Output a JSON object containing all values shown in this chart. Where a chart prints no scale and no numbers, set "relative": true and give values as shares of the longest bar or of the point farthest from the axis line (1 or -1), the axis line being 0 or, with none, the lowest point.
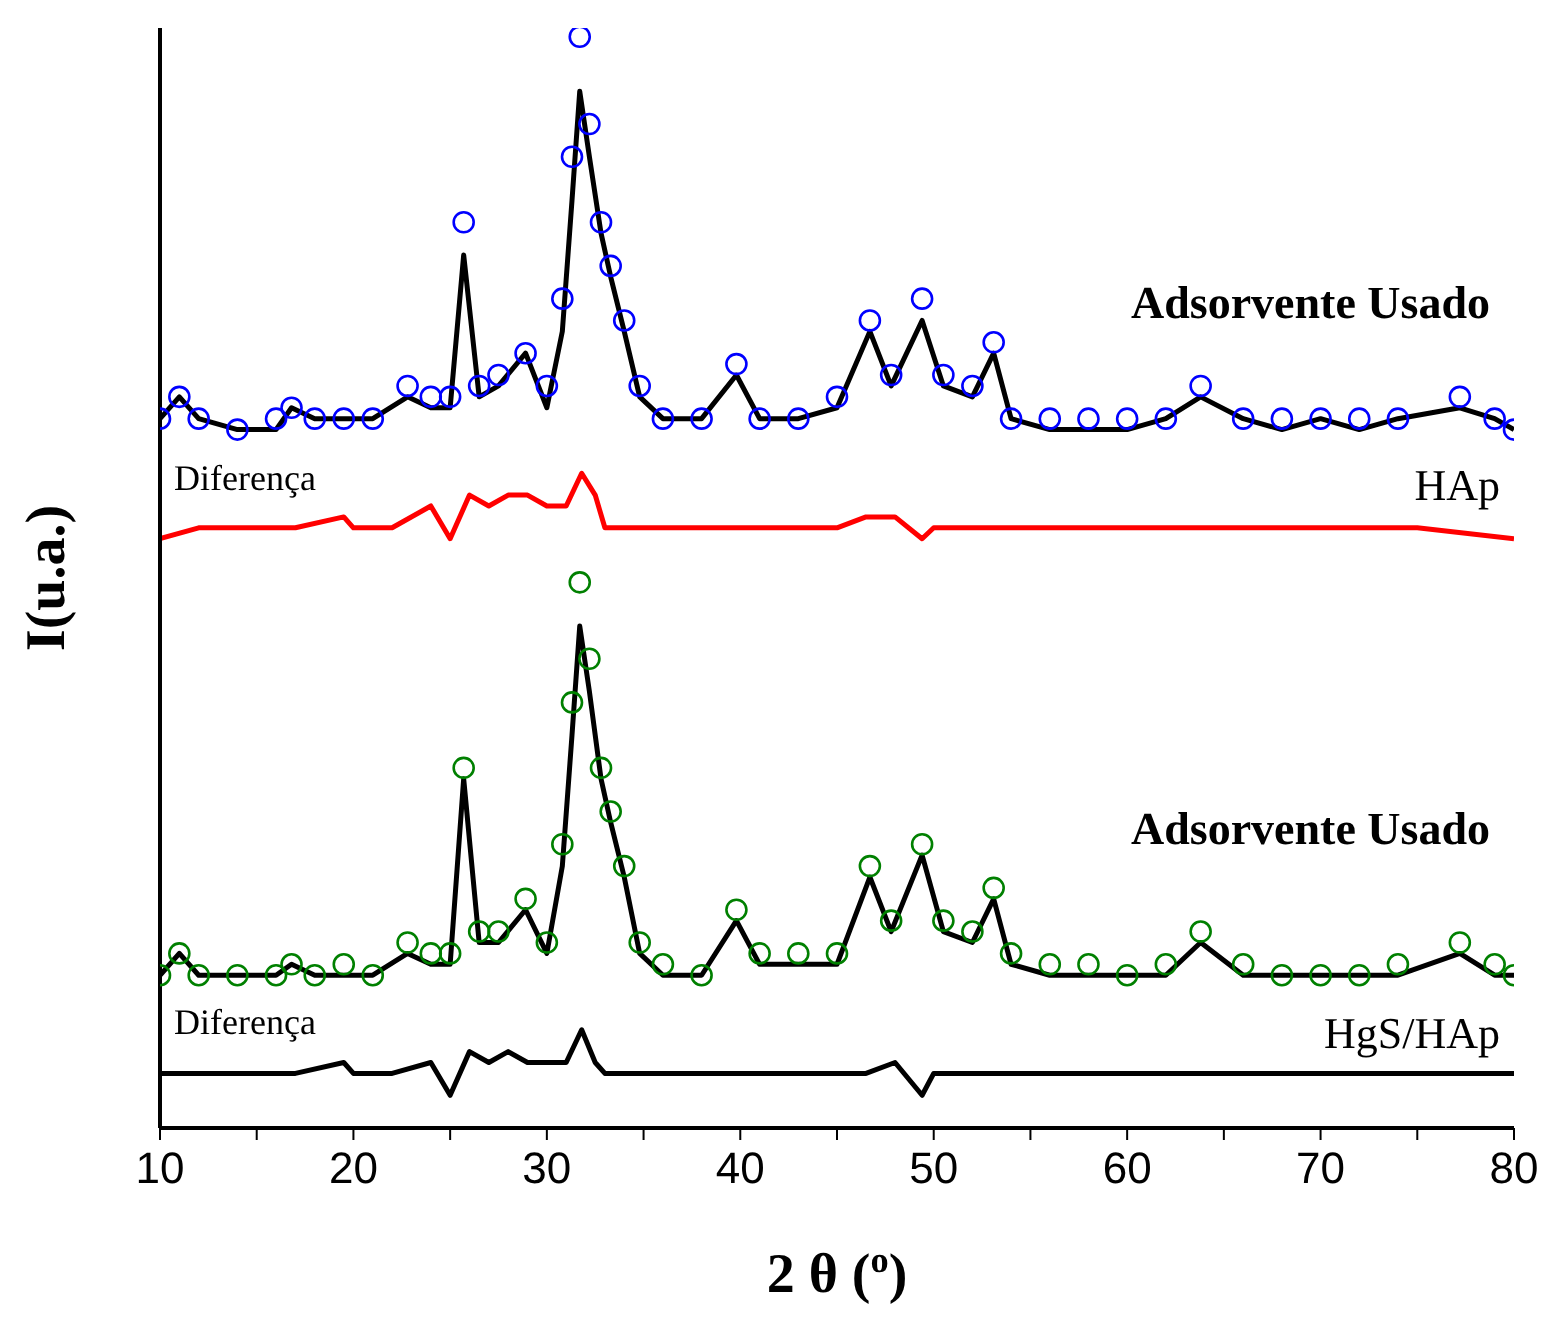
{
  "chart_data": {
    "type": "line",
    "relative": true,
    "xlabel": "2 θ ($^{o}$)",
    "ylabel": "I(u.a.)",
    "xlim": [
      10,
      80
    ],
    "xticks": [
      10,
      {
        "value": 15,
        "label": null
      },
      20,
      {
        "value": 25,
        "label": null
      },
      30,
      {
        "value": 35,
        "label": null
      },
      40,
      {
        "value": 45,
        "label": null
      },
      50,
      {
        "value": 55,
        "label": null
      },
      60,
      {
        "value": 65,
        "label": null
      },
      70,
      {
        "value": 75,
        "label": null
      },
      80
    ],
    "x": [
      10,
      11,
      12,
      14,
      16,
      16.8,
      18,
      19.5,
      21,
      22.8,
      24,
      25,
      25.7,
      26.5,
      27.5,
      28.9,
      30,
      30.8,
      31.3,
      31.7,
      32.2,
      32.8,
      33.3,
      34.0,
      34.8,
      36,
      38,
      39.8,
      41,
      43,
      45,
      46.7,
      47.8,
      49.4,
      50.5,
      52,
      53.1,
      54,
      56,
      58,
      60,
      62,
      63.8,
      66,
      68,
      70,
      72,
      74,
      77.2,
      79,
      80
    ],
    "series": [
      {
        "type": "scatter",
        "marker": "circle",
        "color": "#0000ff",
        "values": [
          0.65,
          0.67,
          0.65,
          0.64,
          0.65,
          0.66,
          0.65,
          0.65,
          0.65,
          0.68,
          0.67,
          0.67,
          0.83,
          0.68,
          0.69,
          0.71,
          0.68,
          0.76,
          0.89,
          1.0,
          0.92,
          0.83,
          0.79,
          0.74,
          0.68,
          0.65,
          0.65,
          0.7,
          0.65,
          0.65,
          0.67,
          0.74,
          0.69,
          0.76,
          0.69,
          0.68,
          0.72,
          0.65,
          0.65,
          0.65,
          0.65,
          0.65,
          0.68,
          0.65,
          0.65,
          0.65,
          0.65,
          0.65,
          0.67,
          0.65,
          0.64
        ]
      },
      {
        "color": "#000000",
        "values": [
          0.65,
          0.67,
          0.65,
          0.64,
          0.64,
          0.66,
          0.65,
          0.65,
          0.65,
          0.67,
          0.66,
          0.66,
          0.8,
          0.67,
          0.68,
          0.71,
          0.66,
          0.73,
          0.85,
          0.95,
          0.89,
          0.82,
          0.78,
          0.73,
          0.67,
          0.65,
          0.65,
          0.69,
          0.65,
          0.65,
          0.66,
          0.73,
          0.68,
          0.74,
          0.68,
          0.67,
          0.71,
          0.65,
          0.64,
          0.64,
          0.64,
          0.65,
          0.67,
          0.65,
          0.64,
          0.65,
          0.64,
          0.65,
          0.66,
          0.65,
          0.64
        ]
      },
      {
        "color": "#ff0000",
        "x": [
          10,
          12,
          15,
          17,
          19.5,
          20,
          22,
          24,
          25,
          26,
          27,
          28,
          29,
          30,
          31,
          31.8,
          32.5,
          33,
          35,
          38,
          40,
          42,
          45,
          46.5,
          48,
          49.4,
          50,
          52,
          55,
          58,
          60,
          65,
          70,
          75,
          80
        ],
        "values": [
          0.54,
          0.55,
          0.55,
          0.55,
          0.56,
          0.55,
          0.55,
          0.57,
          0.54,
          0.58,
          0.57,
          0.58,
          0.58,
          0.57,
          0.57,
          0.6,
          0.58,
          0.55,
          0.55,
          0.55,
          0.55,
          0.55,
          0.55,
          0.56,
          0.56,
          0.54,
          0.55,
          0.55,
          0.55,
          0.55,
          0.55,
          0.55,
          0.55,
          0.55,
          0.54
        ]
      },
      {
        "type": "scatter",
        "marker": "circle",
        "color": "#008000",
        "values": [
          0.14,
          0.16,
          0.14,
          0.14,
          0.14,
          0.15,
          0.14,
          0.15,
          0.14,
          0.17,
          0.16,
          0.16,
          0.33,
          0.18,
          0.18,
          0.21,
          0.17,
          0.26,
          0.39,
          0.5,
          0.43,
          0.33,
          0.29,
          0.24,
          0.17,
          0.15,
          0.14,
          0.2,
          0.16,
          0.16,
          0.16,
          0.24,
          0.19,
          0.26,
          0.19,
          0.18,
          0.22,
          0.16,
          0.15,
          0.15,
          0.14,
          0.15,
          0.18,
          0.15,
          0.14,
          0.14,
          0.14,
          0.15,
          0.17,
          0.15,
          0.14
        ]
      },
      {
        "color": "#000000",
        "values": [
          0.14,
          0.16,
          0.14,
          0.14,
          0.14,
          0.15,
          0.14,
          0.14,
          0.14,
          0.16,
          0.15,
          0.15,
          0.32,
          0.17,
          0.17,
          0.2,
          0.16,
          0.24,
          0.36,
          0.46,
          0.4,
          0.32,
          0.28,
          0.23,
          0.16,
          0.14,
          0.14,
          0.19,
          0.15,
          0.15,
          0.15,
          0.23,
          0.18,
          0.25,
          0.18,
          0.17,
          0.21,
          0.15,
          0.14,
          0.14,
          0.14,
          0.14,
          0.17,
          0.14,
          0.14,
          0.14,
          0.14,
          0.14,
          0.16,
          0.14,
          0.14
        ]
      },
      {
        "color": "#000000",
        "x": [
          10,
          12,
          15,
          17,
          19.5,
          20,
          22,
          24,
          25,
          26,
          27,
          28,
          29,
          30,
          31,
          31.8,
          32.5,
          33,
          35,
          38,
          40,
          42,
          45,
          46.5,
          48,
          49.4,
          50,
          52,
          55,
          58,
          60,
          65,
          70,
          75,
          80
        ],
        "values": [
          0.05,
          0.05,
          0.05,
          0.05,
          0.06,
          0.05,
          0.05,
          0.06,
          0.03,
          0.07,
          0.06,
          0.07,
          0.06,
          0.06,
          0.06,
          0.09,
          0.06,
          0.05,
          0.05,
          0.05,
          0.05,
          0.05,
          0.05,
          0.05,
          0.06,
          0.03,
          0.05,
          0.05,
          0.05,
          0.05,
          0.05,
          0.05,
          0.05,
          0.05,
          0.05
        ]
      }
    ],
    "annotations": [
      "Adsorvente Usado",
      "Diferença",
      "HAp",
      "Adsorvente Usado",
      "Diferença",
      "HgS/HAp"
    ]
  }
}
